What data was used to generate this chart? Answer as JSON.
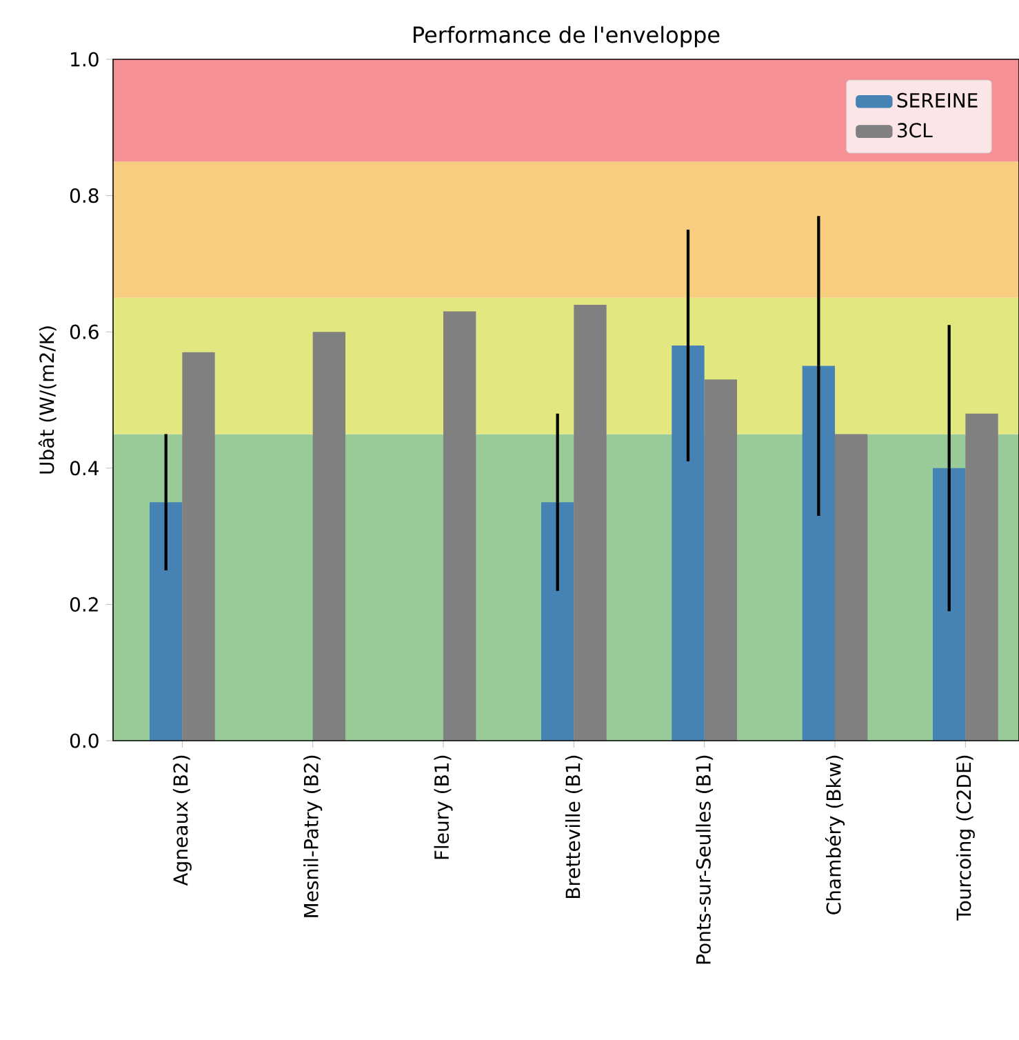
{
  "chart_data": {
    "type": "bar",
    "title": "Performance de l'enveloppe",
    "ylabel": "Ubât (W/(m2/K)",
    "categories": [
      "Agneaux (B2)",
      "Mesnil-Patry (B2)",
      "Fleury (B1)",
      "Bretteville (B1)",
      "Ponts-sur-Seulles (B1)",
      "Chambéry (Bkw)",
      "Tourcoing (C2DE)"
    ],
    "series": [
      {
        "name": "SEREINE",
        "color": "#4682b4",
        "values": [
          0.35,
          null,
          null,
          0.35,
          0.58,
          0.55,
          0.4
        ],
        "errors": [
          0.1,
          null,
          null,
          0.13,
          0.17,
          0.22,
          0.21
        ]
      },
      {
        "name": "3CL",
        "color": "#808080",
        "values": [
          0.57,
          0.6,
          0.63,
          0.64,
          0.53,
          0.45,
          0.48
        ]
      }
    ],
    "ylim": [
      0,
      1
    ],
    "yticks": [
      {
        "value": 0,
        "label": "0.0"
      },
      {
        "value": 0.2,
        "label": "0.2"
      },
      {
        "value": 0.4,
        "label": "0.4"
      },
      {
        "value": 0.6,
        "label": "0.6"
      },
      {
        "value": 0.8,
        "label": "0.8"
      },
      {
        "value": 1,
        "label": "1.0"
      }
    ],
    "bands": [
      {
        "axis": "y",
        "from": 0,
        "to": 0.45,
        "color": "#99cb99"
      },
      {
        "axis": "y",
        "from": 0.45,
        "to": 0.65,
        "color": "#e2e77f"
      },
      {
        "axis": "y",
        "from": 0.65,
        "to": 0.85,
        "color": "#f8cd80"
      },
      {
        "axis": "y",
        "from": 0.85,
        "to": 1,
        "color": "#f49096"
      }
    ],
    "legend": "top right",
    "grid": false
  }
}
